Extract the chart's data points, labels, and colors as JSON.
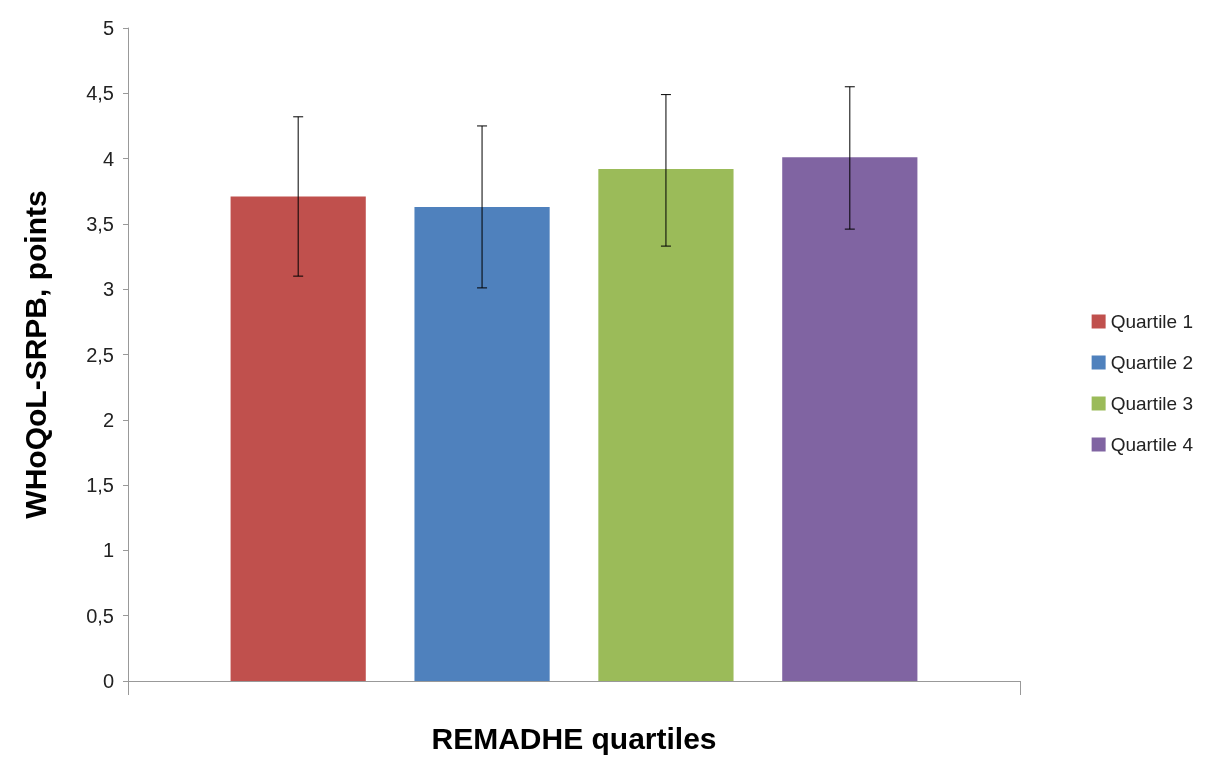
{
  "chart_data": {
    "type": "bar",
    "xlabel": "REMADHE quartiles",
    "ylabel": "WHoQoL-SRPB, points",
    "categories": [
      null
    ],
    "series": [
      {
        "name": "Quartile 1",
        "color": "#c0504d",
        "values": [
          3.71
        ],
        "errors": [
          [
            3.1,
            4.32
          ]
        ]
      },
      {
        "name": "Quartile 2",
        "color": "#4f81bd",
        "values": [
          3.63
        ],
        "errors": [
          [
            3.01,
            4.25
          ]
        ]
      },
      {
        "name": "Quartile 3",
        "color": "#9bbb59",
        "values": [
          3.92
        ],
        "errors": [
          [
            3.33,
            4.49
          ]
        ]
      },
      {
        "name": "Quartile 4",
        "color": "#8064a2",
        "values": [
          4.01
        ],
        "errors": [
          [
            3.46,
            4.55
          ]
        ]
      }
    ],
    "ylim": [
      0,
      5
    ],
    "yticks": [
      0,
      {
        "value": 0.5,
        "label": "0,5"
      },
      1,
      {
        "value": 1.5,
        "label": "1,5"
      },
      2,
      {
        "value": 2.5,
        "label": "2,5"
      },
      3,
      {
        "value": 3.5,
        "label": "3,5"
      },
      4,
      {
        "value": 4.5,
        "label": "4,5"
      },
      5
    ],
    "grid": false,
    "legend": "right"
  }
}
